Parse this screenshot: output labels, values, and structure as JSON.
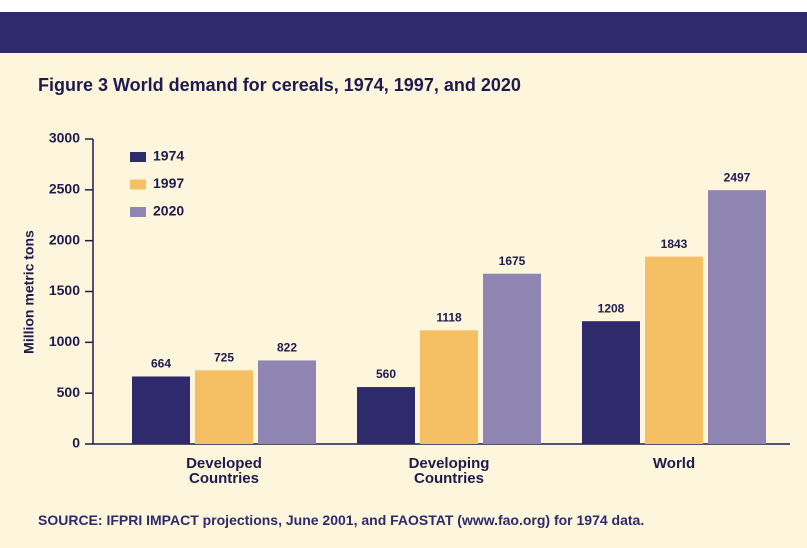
{
  "chart_data": {
    "type": "bar",
    "title": "Figure 3  World demand for cereals, 1974, 1997, and 2020",
    "ylabel": "Million metric tons",
    "categories": [
      "Developed Countries",
      "Developing Countries",
      "World"
    ],
    "series": [
      {
        "name": "1974",
        "color": "#2e2a6b",
        "values": [
          664,
          560,
          1208
        ]
      },
      {
        "name": "1997",
        "color": "#f5c063",
        "values": [
          725,
          1118,
          1843
        ]
      },
      {
        "name": "2020",
        "color": "#8f86b3",
        "values": [
          822,
          1675,
          2497
        ]
      }
    ],
    "ylim": [
      0,
      3000
    ],
    "yticks": [
      0,
      500,
      1000,
      1500,
      2000,
      2500,
      3000
    ],
    "legend": "upper left",
    "source": "SOURCE: IFPRI IMPACT projections, June 2001, and FAOSTAT (www.fao.org) for 1974 data."
  }
}
